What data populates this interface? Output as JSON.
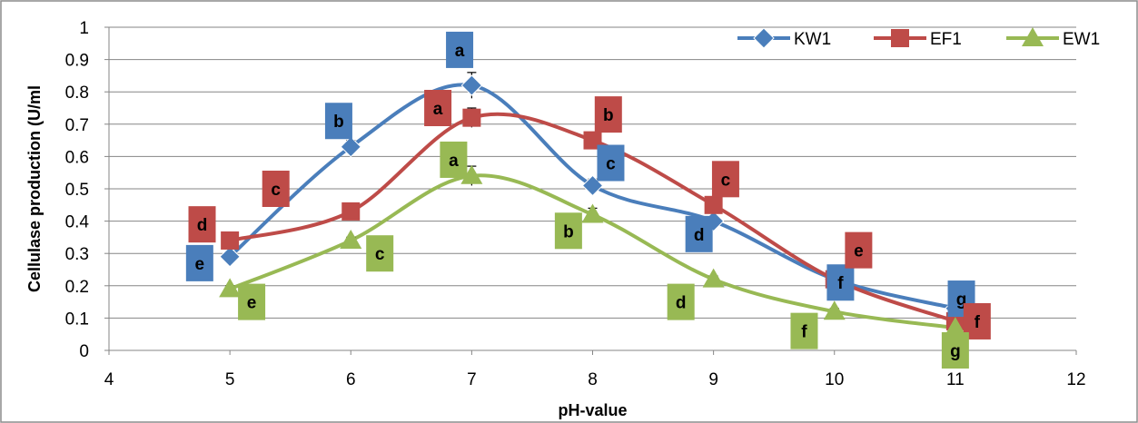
{
  "chart_data": {
    "type": "line",
    "title": "",
    "xlabel": "pH-value",
    "ylabel": "Cellulase production (U/ml",
    "xlim": [
      4,
      12
    ],
    "ylim": [
      0,
      1
    ],
    "x_ticks": [
      "4",
      "5",
      "6",
      "7",
      "8",
      "9",
      "10",
      "11",
      "12"
    ],
    "y_ticks": [
      "0",
      "0.1",
      "0.2",
      "0.3",
      "0.4",
      "0.5",
      "0.6",
      "0.7",
      "0.8",
      "0.9",
      "1"
    ],
    "grid": "horizontal",
    "legend_position": "top-right",
    "series": [
      {
        "name": "KW1",
        "color": "#4a7ebb",
        "marker": "diamond",
        "x": [
          5,
          6,
          7,
          8,
          9,
          10,
          11
        ],
        "y": [
          0.29,
          0.63,
          0.82,
          0.51,
          0.4,
          0.22,
          0.13
        ],
        "errors": [
          0.01,
          0.02,
          0.04,
          0.02,
          0.01,
          0.01,
          0.01
        ],
        "labels": [
          {
            "text": "e",
            "x": 4.75,
            "y": 0.27
          },
          {
            "text": "b",
            "x": 5.9,
            "y": 0.71
          },
          {
            "text": "a",
            "x": 6.9,
            "y": 0.93
          },
          {
            "text": "c",
            "x": 8.15,
            "y": 0.58
          },
          {
            "text": "d",
            "x": 8.88,
            "y": 0.36
          },
          {
            "text": "f",
            "x": 10.05,
            "y": 0.21
          },
          {
            "text": "g",
            "x": 11.05,
            "y": 0.16
          }
        ]
      },
      {
        "name": "EF1",
        "color": "#be4b48",
        "marker": "square",
        "x": [
          5,
          6,
          7,
          8,
          9,
          10,
          11
        ],
        "y": [
          0.34,
          0.43,
          0.72,
          0.65,
          0.45,
          0.22,
          0.09
        ],
        "errors": [
          0.01,
          0.01,
          0.03,
          0.01,
          0.01,
          0.01,
          0.01
        ],
        "labels": [
          {
            "text": "d",
            "x": 4.77,
            "y": 0.39
          },
          {
            "text": "c",
            "x": 5.38,
            "y": 0.5
          },
          {
            "text": "a",
            "x": 6.72,
            "y": 0.75
          },
          {
            "text": "b",
            "x": 8.13,
            "y": 0.73
          },
          {
            "text": "c",
            "x": 9.1,
            "y": 0.53
          },
          {
            "text": "e",
            "x": 10.2,
            "y": 0.31
          },
          {
            "text": "f",
            "x": 11.18,
            "y": 0.09
          }
        ]
      },
      {
        "name": "EW1",
        "color": "#98b954",
        "marker": "triangle",
        "x": [
          5,
          6,
          7,
          8,
          9,
          10,
          11
        ],
        "y": [
          0.19,
          0.34,
          0.54,
          0.42,
          0.22,
          0.12,
          0.07
        ],
        "errors": [
          0.01,
          0.01,
          0.03,
          0.02,
          0.01,
          0.01,
          0.01
        ],
        "labels": [
          {
            "text": "e",
            "x": 5.18,
            "y": 0.15
          },
          {
            "text": "c",
            "x": 6.24,
            "y": 0.3
          },
          {
            "text": "a",
            "x": 6.85,
            "y": 0.59
          },
          {
            "text": "b",
            "x": 7.8,
            "y": 0.37
          },
          {
            "text": "d",
            "x": 8.73,
            "y": 0.15
          },
          {
            "text": "f",
            "x": 9.75,
            "y": 0.06
          },
          {
            "text": "g",
            "x": 11.0,
            "y": 0.0
          }
        ]
      }
    ]
  }
}
